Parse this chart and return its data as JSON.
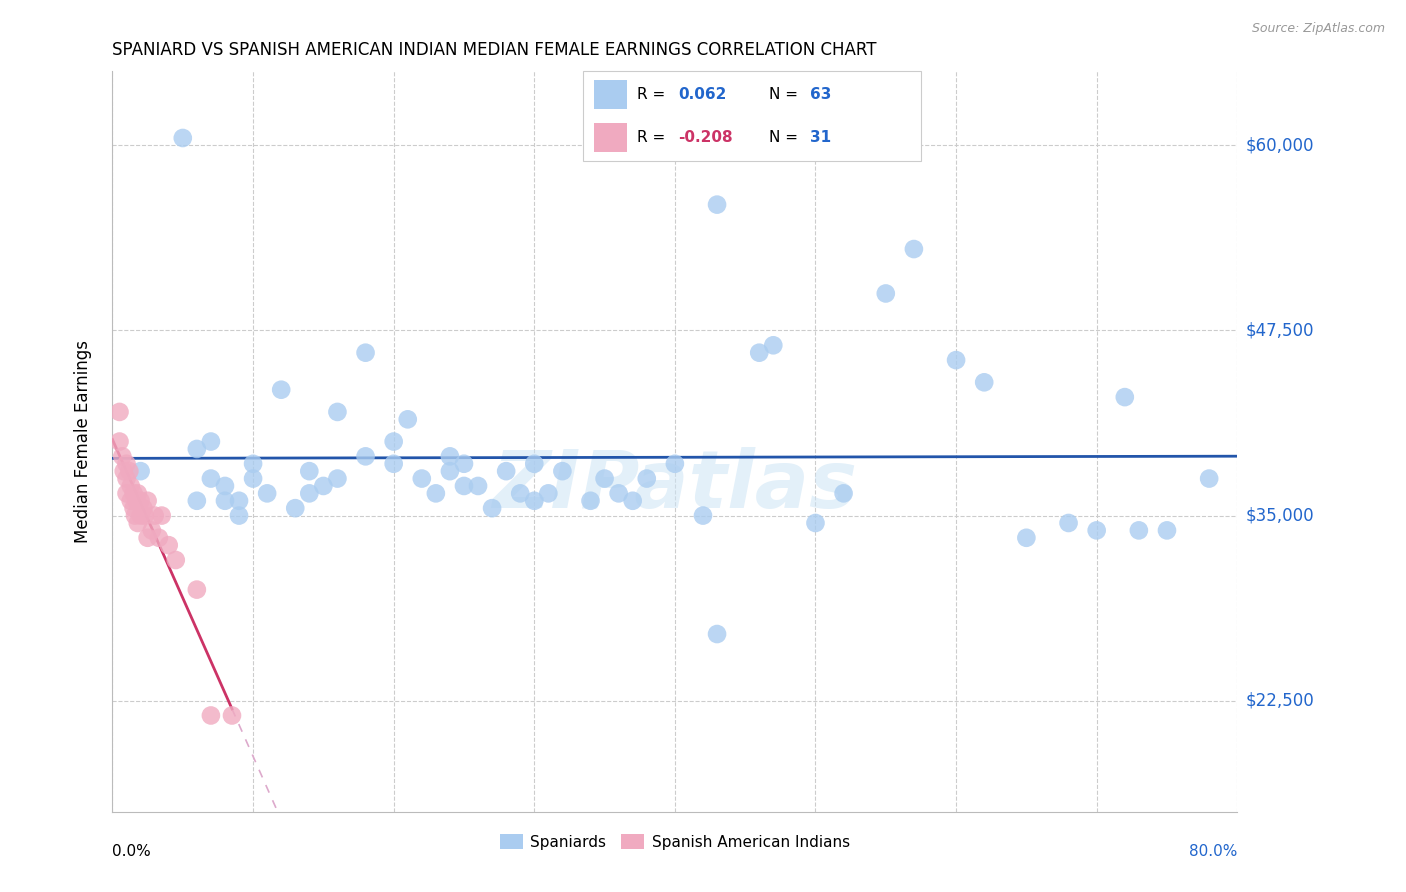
{
  "title": "SPANIARD VS SPANISH AMERICAN INDIAN MEDIAN FEMALE EARNINGS CORRELATION CHART",
  "source": "Source: ZipAtlas.com",
  "ylabel": "Median Female Earnings",
  "ytick_labels": [
    "$22,500",
    "$35,000",
    "$47,500",
    "$60,000"
  ],
  "ytick_values": [
    22500,
    35000,
    47500,
    60000
  ],
  "ymin": 15000,
  "ymax": 65000,
  "xmin": 0.0,
  "xmax": 0.8,
  "watermark": "ZIPatlas",
  "spaniards_color": "#aaccf0",
  "spaniards_line_color": "#2255aa",
  "sai_color": "#f0aac0",
  "sai_line_color": "#cc3366",
  "sai_line_dashed_color": "#ddaacc",
  "blue_label_color": "#2266cc",
  "pink_label_color": "#cc3366",
  "background_color": "#ffffff",
  "spaniards_x": [
    0.02,
    0.06,
    0.06,
    0.07,
    0.07,
    0.08,
    0.08,
    0.09,
    0.09,
    0.1,
    0.1,
    0.11,
    0.12,
    0.13,
    0.14,
    0.14,
    0.15,
    0.16,
    0.16,
    0.18,
    0.2,
    0.2,
    0.21,
    0.22,
    0.23,
    0.24,
    0.24,
    0.25,
    0.25,
    0.26,
    0.27,
    0.28,
    0.29,
    0.3,
    0.3,
    0.31,
    0.32,
    0.34,
    0.35,
    0.36,
    0.37,
    0.38,
    0.4,
    0.42,
    0.43,
    0.46,
    0.47,
    0.5,
    0.52,
    0.55,
    0.57,
    0.6,
    0.62,
    0.65,
    0.68,
    0.7,
    0.72,
    0.73,
    0.75,
    0.78,
    0.18,
    0.43,
    0.05
  ],
  "spaniards_y": [
    38000,
    36000,
    39500,
    37500,
    40000,
    36000,
    37000,
    35000,
    36000,
    37500,
    38500,
    36500,
    43500,
    35500,
    38000,
    36500,
    37000,
    42000,
    37500,
    46000,
    38500,
    40000,
    41500,
    37500,
    36500,
    39000,
    38000,
    37000,
    38500,
    37000,
    35500,
    38000,
    36500,
    36000,
    38500,
    36500,
    38000,
    36000,
    37500,
    36500,
    36000,
    37500,
    38500,
    35000,
    56000,
    46000,
    46500,
    34500,
    36500,
    50000,
    53000,
    45500,
    44000,
    33500,
    34500,
    34000,
    43000,
    34000,
    34000,
    37500,
    39000,
    27000,
    60500
  ],
  "sai_x": [
    0.005,
    0.005,
    0.007,
    0.008,
    0.01,
    0.01,
    0.01,
    0.012,
    0.013,
    0.013,
    0.015,
    0.015,
    0.016,
    0.017,
    0.018,
    0.018,
    0.02,
    0.02,
    0.022,
    0.023,
    0.025,
    0.025,
    0.028,
    0.03,
    0.033,
    0.035,
    0.04,
    0.045,
    0.06,
    0.07,
    0.085
  ],
  "sai_y": [
    40000,
    42000,
    39000,
    38000,
    38500,
    37500,
    36500,
    38000,
    37000,
    36000,
    36500,
    35500,
    35000,
    36000,
    36500,
    34500,
    35000,
    36000,
    35500,
    35000,
    36000,
    33500,
    34000,
    35000,
    33500,
    35000,
    33000,
    32000,
    30000,
    21500,
    21500
  ]
}
